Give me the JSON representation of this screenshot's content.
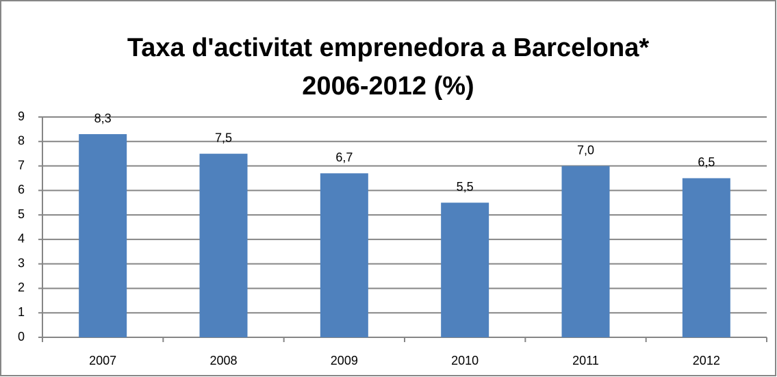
{
  "chart_data": {
    "type": "bar",
    "title": [
      "Taxa d'activitat emprenedora a Barcelona*",
      "2006-2012 (%)"
    ],
    "categories": [
      "2007",
      "2008",
      "2009",
      "2010",
      "2011",
      "2012"
    ],
    "values": [
      8.3,
      7.5,
      6.7,
      5.5,
      7.0,
      6.5
    ],
    "value_labels": [
      "8,3",
      "7,5",
      "6,7",
      "5,5",
      "7,0",
      "6,5"
    ],
    "color": "#4f81bd",
    "ylim": [
      0,
      9
    ],
    "yticks": [
      0,
      1,
      2,
      3,
      4,
      5,
      6,
      7,
      8,
      9
    ],
    "grid": true
  }
}
